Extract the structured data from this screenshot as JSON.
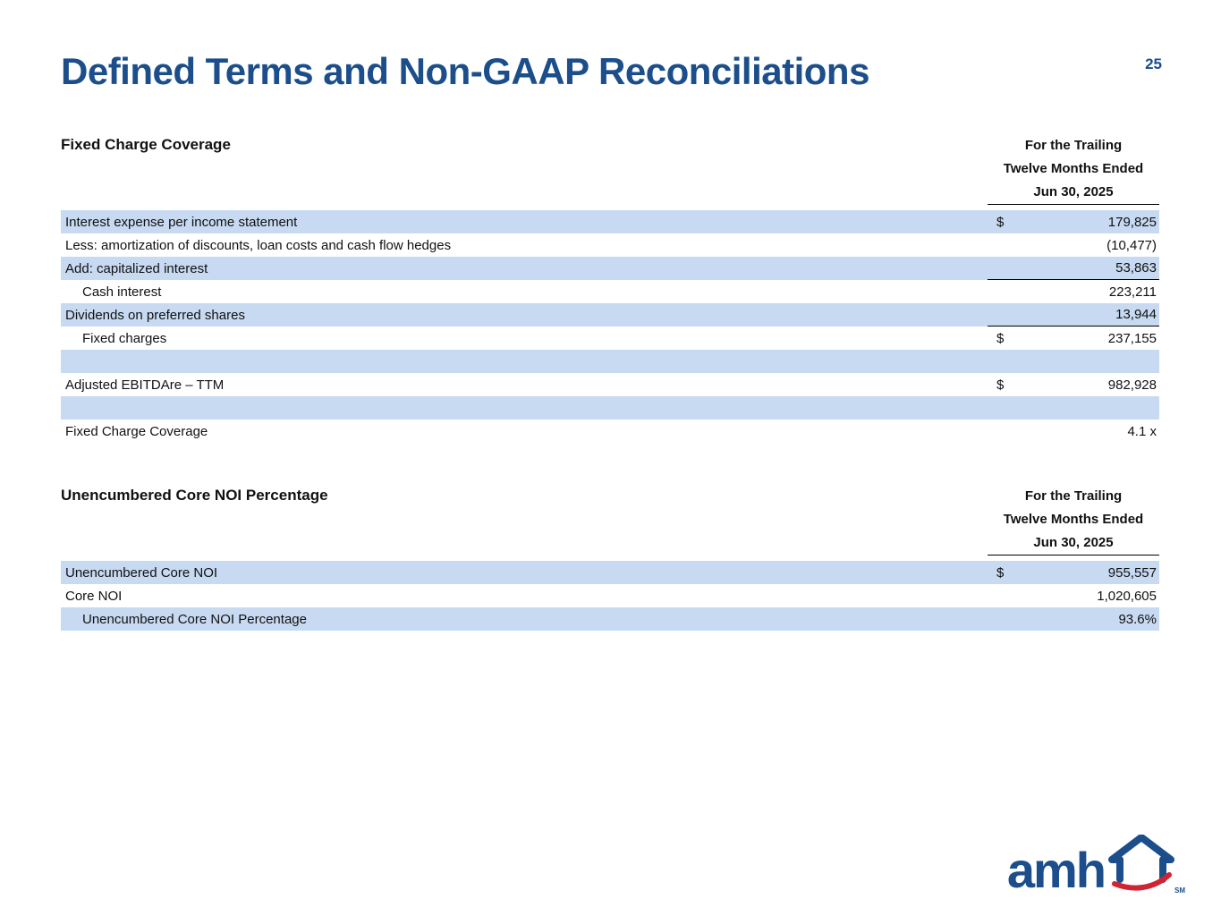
{
  "page": {
    "title": "Defined Terms and Non-GAAP Reconciliations",
    "page_number": "25",
    "accent_color": "#1b4e8a",
    "row_shade_color": "#c7daf2",
    "swoosh_color": "#cf2533"
  },
  "tables": [
    {
      "section_title": "Fixed Charge Coverage",
      "header_lines": [
        "For the Trailing",
        "Twelve Months Ended",
        "Jun 30, 2025"
      ],
      "rows": [
        {
          "label": "Interest expense per income statement",
          "dollar": "$",
          "value": "179,825",
          "shaded": true
        },
        {
          "label": "Less: amortization of discounts, loan costs and cash flow hedges",
          "dollar": "",
          "value": "(10,477)",
          "shaded": false
        },
        {
          "label": "Add: capitalized interest",
          "dollar": "",
          "value": "53,863",
          "shaded": true,
          "rule_below": true
        },
        {
          "label": "Cash interest",
          "dollar": "",
          "value": "223,211",
          "shaded": false,
          "indent": true
        },
        {
          "label": "Dividends on preferred shares",
          "dollar": "",
          "value": "13,944",
          "shaded": true,
          "rule_below": true
        },
        {
          "label": "Fixed charges",
          "dollar": "$",
          "value": "237,155",
          "shaded": false,
          "indent": true
        },
        {
          "spacer": true,
          "shaded": true
        },
        {
          "label": "Adjusted EBITDAre – TTM",
          "dollar": "$",
          "value": "982,928",
          "shaded": false
        },
        {
          "spacer": true,
          "shaded": true
        },
        {
          "label": "Fixed Charge Coverage",
          "dollar": "",
          "value": "4.1 x",
          "shaded": false
        }
      ]
    },
    {
      "section_title": "Unencumbered Core NOI Percentage",
      "header_lines": [
        "For the Trailing",
        "Twelve Months Ended",
        "Jun 30, 2025"
      ],
      "rows": [
        {
          "label": "Unencumbered Core NOI",
          "dollar": "$",
          "value": "955,557",
          "shaded": true
        },
        {
          "label": "Core NOI",
          "dollar": "",
          "value": "1,020,605",
          "shaded": false
        },
        {
          "label": "Unencumbered Core NOI Percentage",
          "dollar": "",
          "value": "93.6%",
          "shaded": true,
          "indent": true
        }
      ]
    }
  ],
  "logo": {
    "text": "amh",
    "sm": "SM"
  }
}
